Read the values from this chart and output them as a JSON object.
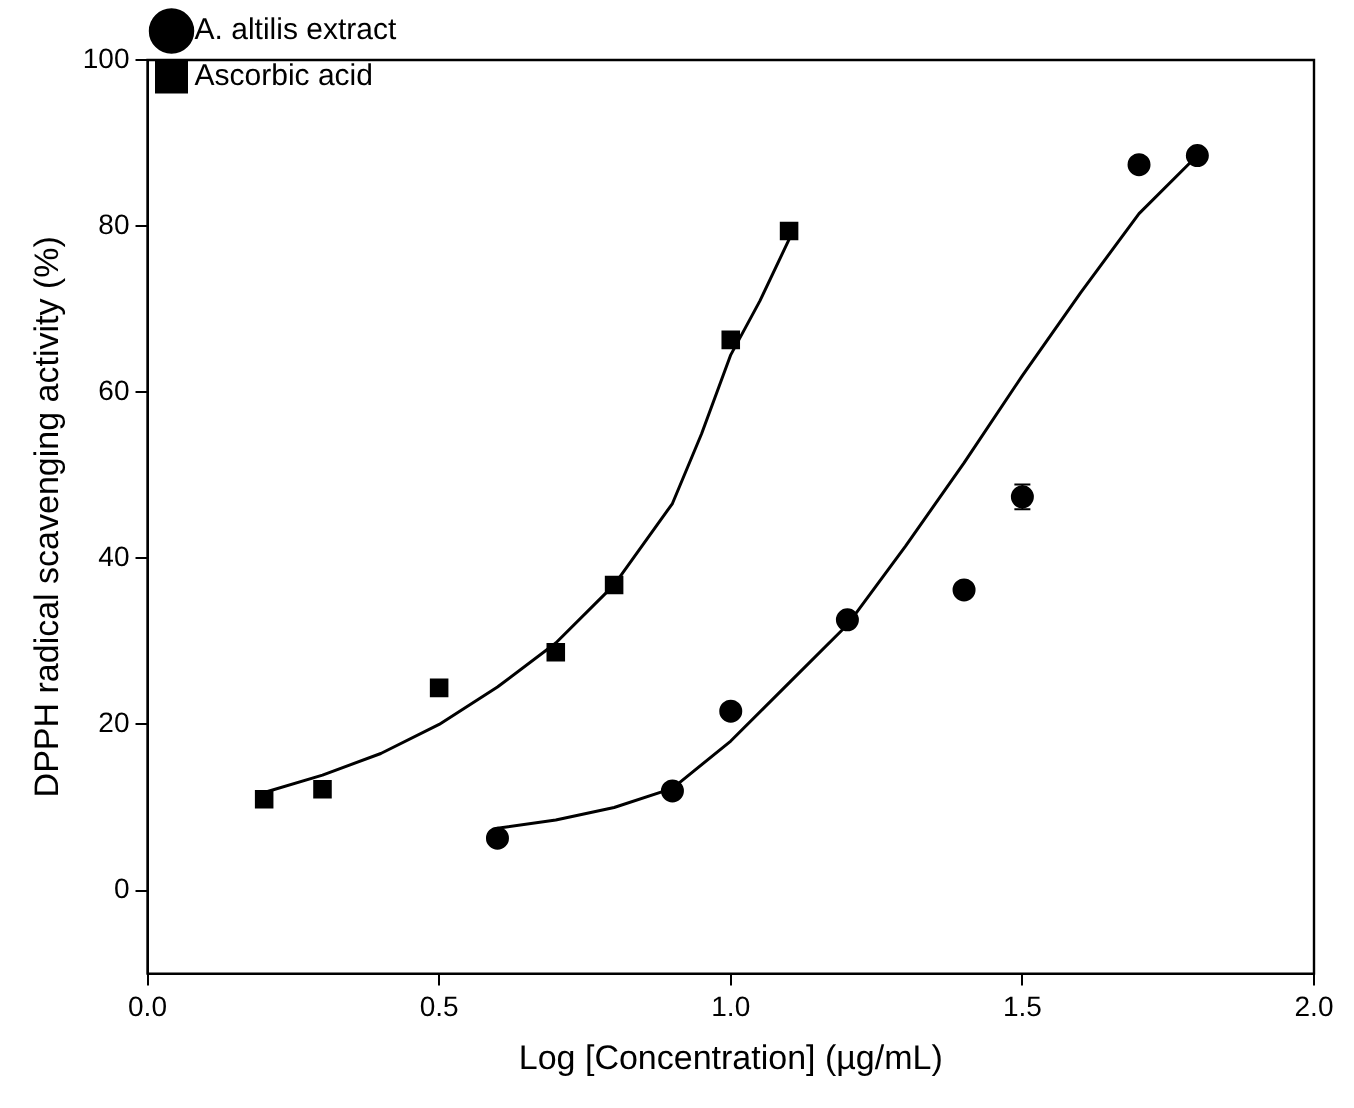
{
  "chart_data": {
    "type": "scatter",
    "xlabel": "Log [Concentration] (µg/mL)",
    "ylabel": "DPPH radical scavenging activity (%)",
    "xlim": [
      0,
      2
    ],
    "ylim": [
      -10,
      100
    ],
    "xticks": [
      {
        "value": 0,
        "label": "0.0"
      },
      {
        "value": 0.5,
        "label": "0.5"
      },
      {
        "value": 1,
        "label": "1.0"
      },
      {
        "value": 1.5,
        "label": "1.5"
      },
      {
        "value": 2,
        "label": "2.0"
      }
    ],
    "yticks": [
      0,
      20,
      40,
      60,
      80,
      100
    ],
    "grid": false,
    "legend": "top left",
    "series": [
      {
        "name": "A. altilis extract",
        "color": "#000000",
        "marker": "circle",
        "x": [
          0.6,
          0.9,
          1.0,
          1.2,
          1.4,
          1.5,
          1.7,
          1.8
        ],
        "values": [
          6.3,
          12,
          21.6,
          32.6,
          36.2,
          47.4,
          87.4,
          88.5
        ],
        "errors": [
          null,
          null,
          null,
          null,
          null,
          1.5,
          null,
          null
        ]
      },
      {
        "name": "Ascorbic acid",
        "color": "#000000",
        "marker": "square",
        "x": [
          0.2,
          0.3,
          0.5,
          0.7,
          0.8,
          1.0,
          1.1
        ],
        "values": [
          11,
          12.2,
          24.4,
          28.7,
          36.8,
          66.3,
          79.4
        ]
      },
      {
        "type": "line",
        "color": "#000000",
        "marker": "none",
        "x": [
          0.6,
          0.7,
          0.8,
          0.9,
          1.0,
          1.1,
          1.2,
          1.3,
          1.4,
          1.5,
          1.6,
          1.7,
          1.8
        ],
        "values": [
          7.5,
          8.5,
          10,
          12.3,
          18,
          25,
          32,
          41.5,
          51.5,
          62,
          72,
          81.5,
          88.5
        ]
      },
      {
        "type": "line",
        "color": "#000000",
        "marker": "none",
        "x": [
          0.2,
          0.3,
          0.4,
          0.5,
          0.6,
          0.7,
          0.8,
          0.9,
          0.95,
          1.0,
          1.05,
          1.1
        ],
        "values": [
          11.8,
          13.9,
          16.5,
          20,
          24.5,
          29.8,
          36.8,
          46.6,
          55,
          64.5,
          71,
          78.4
        ]
      }
    ]
  }
}
